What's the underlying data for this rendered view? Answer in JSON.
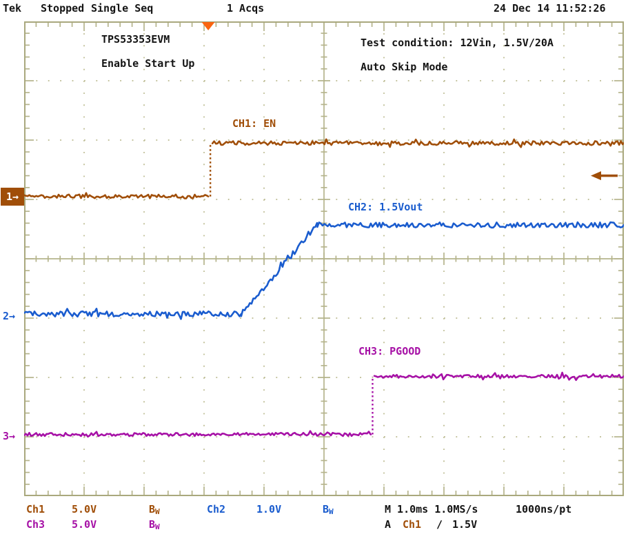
{
  "header": {
    "brand": "Tek",
    "status": "Stopped",
    "mode": "Single Seq",
    "acquisitions": "1 Acqs",
    "datetime": "24 Dec 14 11:52:26"
  },
  "annotations": {
    "device": "TPS53353EVM",
    "test": "Enable Start Up",
    "condition": "Test condition: 12Vin, 1.5V/20A",
    "mode": "Auto Skip Mode"
  },
  "channel_markers": {
    "ch1": {
      "label": "1",
      "arrow": "→"
    },
    "ch2": {
      "label": "2",
      "arrow": "→"
    },
    "ch3": {
      "label": "3",
      "arrow": "→"
    }
  },
  "readouts": {
    "ch1": {
      "label": "Ch1",
      "scale": "5.0V"
    },
    "ch2": {
      "label": "Ch2",
      "scale": "1.0V"
    },
    "ch3": {
      "label": "Ch3",
      "scale": "5.0V"
    },
    "bw": {
      "main": "B",
      "sub": "W"
    },
    "timebase": "M 1.0ms 1.0MS/s",
    "resolution": "1000ns/pt",
    "trigger": {
      "prefix": "A",
      "source": "Ch1",
      "slope": "∕",
      "level": "1.5V"
    }
  },
  "colors": {
    "background": "#FFFFFF",
    "text": "#141414",
    "grid": "#B5B48C",
    "grid_dots": "#C2C19B",
    "grid_border": "#A9A87D",
    "ch1": "#A04E08",
    "ch2": "#1A5CCE",
    "ch3": "#A611A6",
    "trigger_marker": "#FA6410"
  },
  "chart_data": {
    "type": "line",
    "instrument": "oscilloscope-waveform-display",
    "title": "TPS53353EVM Enable Start Up, 12Vin 1.5V/20A, Auto Skip Mode",
    "x_axis": {
      "unit": "ms",
      "ms_per_div": 1.0,
      "divisions": 10,
      "sample_rate": "1.0MS/s",
      "resolution": "1000ns/pt"
    },
    "y_axis": {
      "divisions": 8
    },
    "grid": "dotted division lines with solid center crosshair and minor ticks",
    "legend_position": "labels-over-traces",
    "trigger": {
      "source": "Ch1",
      "slope": "rising",
      "level_V": 1.5,
      "position_div_from_left": 3.07,
      "level_div_from_top": 2.6
    },
    "series": [
      {
        "name": "CH1: EN",
        "channel": 1,
        "volts_per_div": 5.0,
        "bandwidth_limited": true,
        "zero_ref_div_from_top": 2.95,
        "noise_V": 0.17,
        "points_ms_V": [
          [
            -3.07,
            0
          ],
          [
            0.0,
            0
          ],
          [
            0.07,
            4.5
          ],
          [
            6.93,
            4.5
          ]
        ],
        "description": "EN steps from 0V to ~4.5V at trigger"
      },
      {
        "name": "CH2: 1.5Vout",
        "channel": 2,
        "volts_per_div": 1.0,
        "bandwidth_limited": true,
        "zero_ref_div_from_top": 4.93,
        "noise_V": 0.045,
        "points_ms_V": [
          [
            -3.07,
            0
          ],
          [
            0.55,
            0
          ],
          [
            1.82,
            1.5
          ],
          [
            6.93,
            1.5
          ]
        ],
        "description": "1.5V output soft-start ramp from 0.55ms to 1.82ms after EN"
      },
      {
        "name": "CH3: PGOOD",
        "channel": 3,
        "volts_per_div": 5.0,
        "bandwidth_limited": true,
        "zero_ref_div_from_top": 6.96,
        "noise_V": 0.14,
        "points_ms_V": [
          [
            -3.07,
            0
          ],
          [
            2.71,
            0
          ],
          [
            2.77,
            4.9
          ],
          [
            6.93,
            4.9
          ]
        ],
        "description": "PGOOD asserts to ~4.9V at 2.71ms, after output reaches regulation"
      }
    ]
  }
}
